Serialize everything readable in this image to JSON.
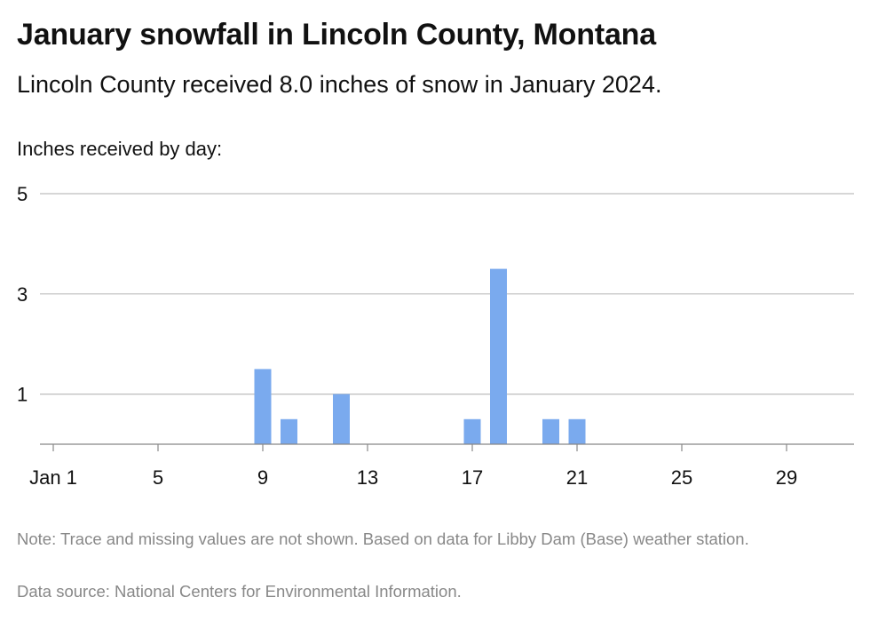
{
  "title": "January snowfall in Lincoln County, Montana",
  "subtitle": "Lincoln County received 8.0 inches of snow in January 2024.",
  "y_axis_caption": "Inches received by day:",
  "note": "Note: Trace and missing values are not shown. Based on data for Libby Dam (Base) weather station.",
  "source": "Data source: National Centers for Environmental Information.",
  "colors": {
    "bar": "#7aaaee",
    "grid": "#bdbdbd",
    "axis": "#888888"
  },
  "chart_data": {
    "type": "bar",
    "title": "January snowfall in Lincoln County, Montana",
    "ylabel": "Inches received by day:",
    "xlabel": "",
    "ylim": [
      0,
      5
    ],
    "y_ticks": [
      1,
      3,
      5
    ],
    "x_range": [
      1,
      31
    ],
    "x_ticks": [
      {
        "day": 1,
        "label": "Jan 1"
      },
      {
        "day": 5,
        "label": "5"
      },
      {
        "day": 9,
        "label": "9"
      },
      {
        "day": 13,
        "label": "13"
      },
      {
        "day": 17,
        "label": "17"
      },
      {
        "day": 21,
        "label": "21"
      },
      {
        "day": 25,
        "label": "25"
      },
      {
        "day": 29,
        "label": "29"
      }
    ],
    "bars": [
      {
        "day": 9,
        "value": 1.5
      },
      {
        "day": 10,
        "value": 0.5
      },
      {
        "day": 12,
        "value": 1.0
      },
      {
        "day": 17,
        "value": 0.5
      },
      {
        "day": 18,
        "value": 3.5
      },
      {
        "day": 20,
        "value": 0.5
      },
      {
        "day": 21,
        "value": 0.5
      }
    ],
    "grid": true
  }
}
